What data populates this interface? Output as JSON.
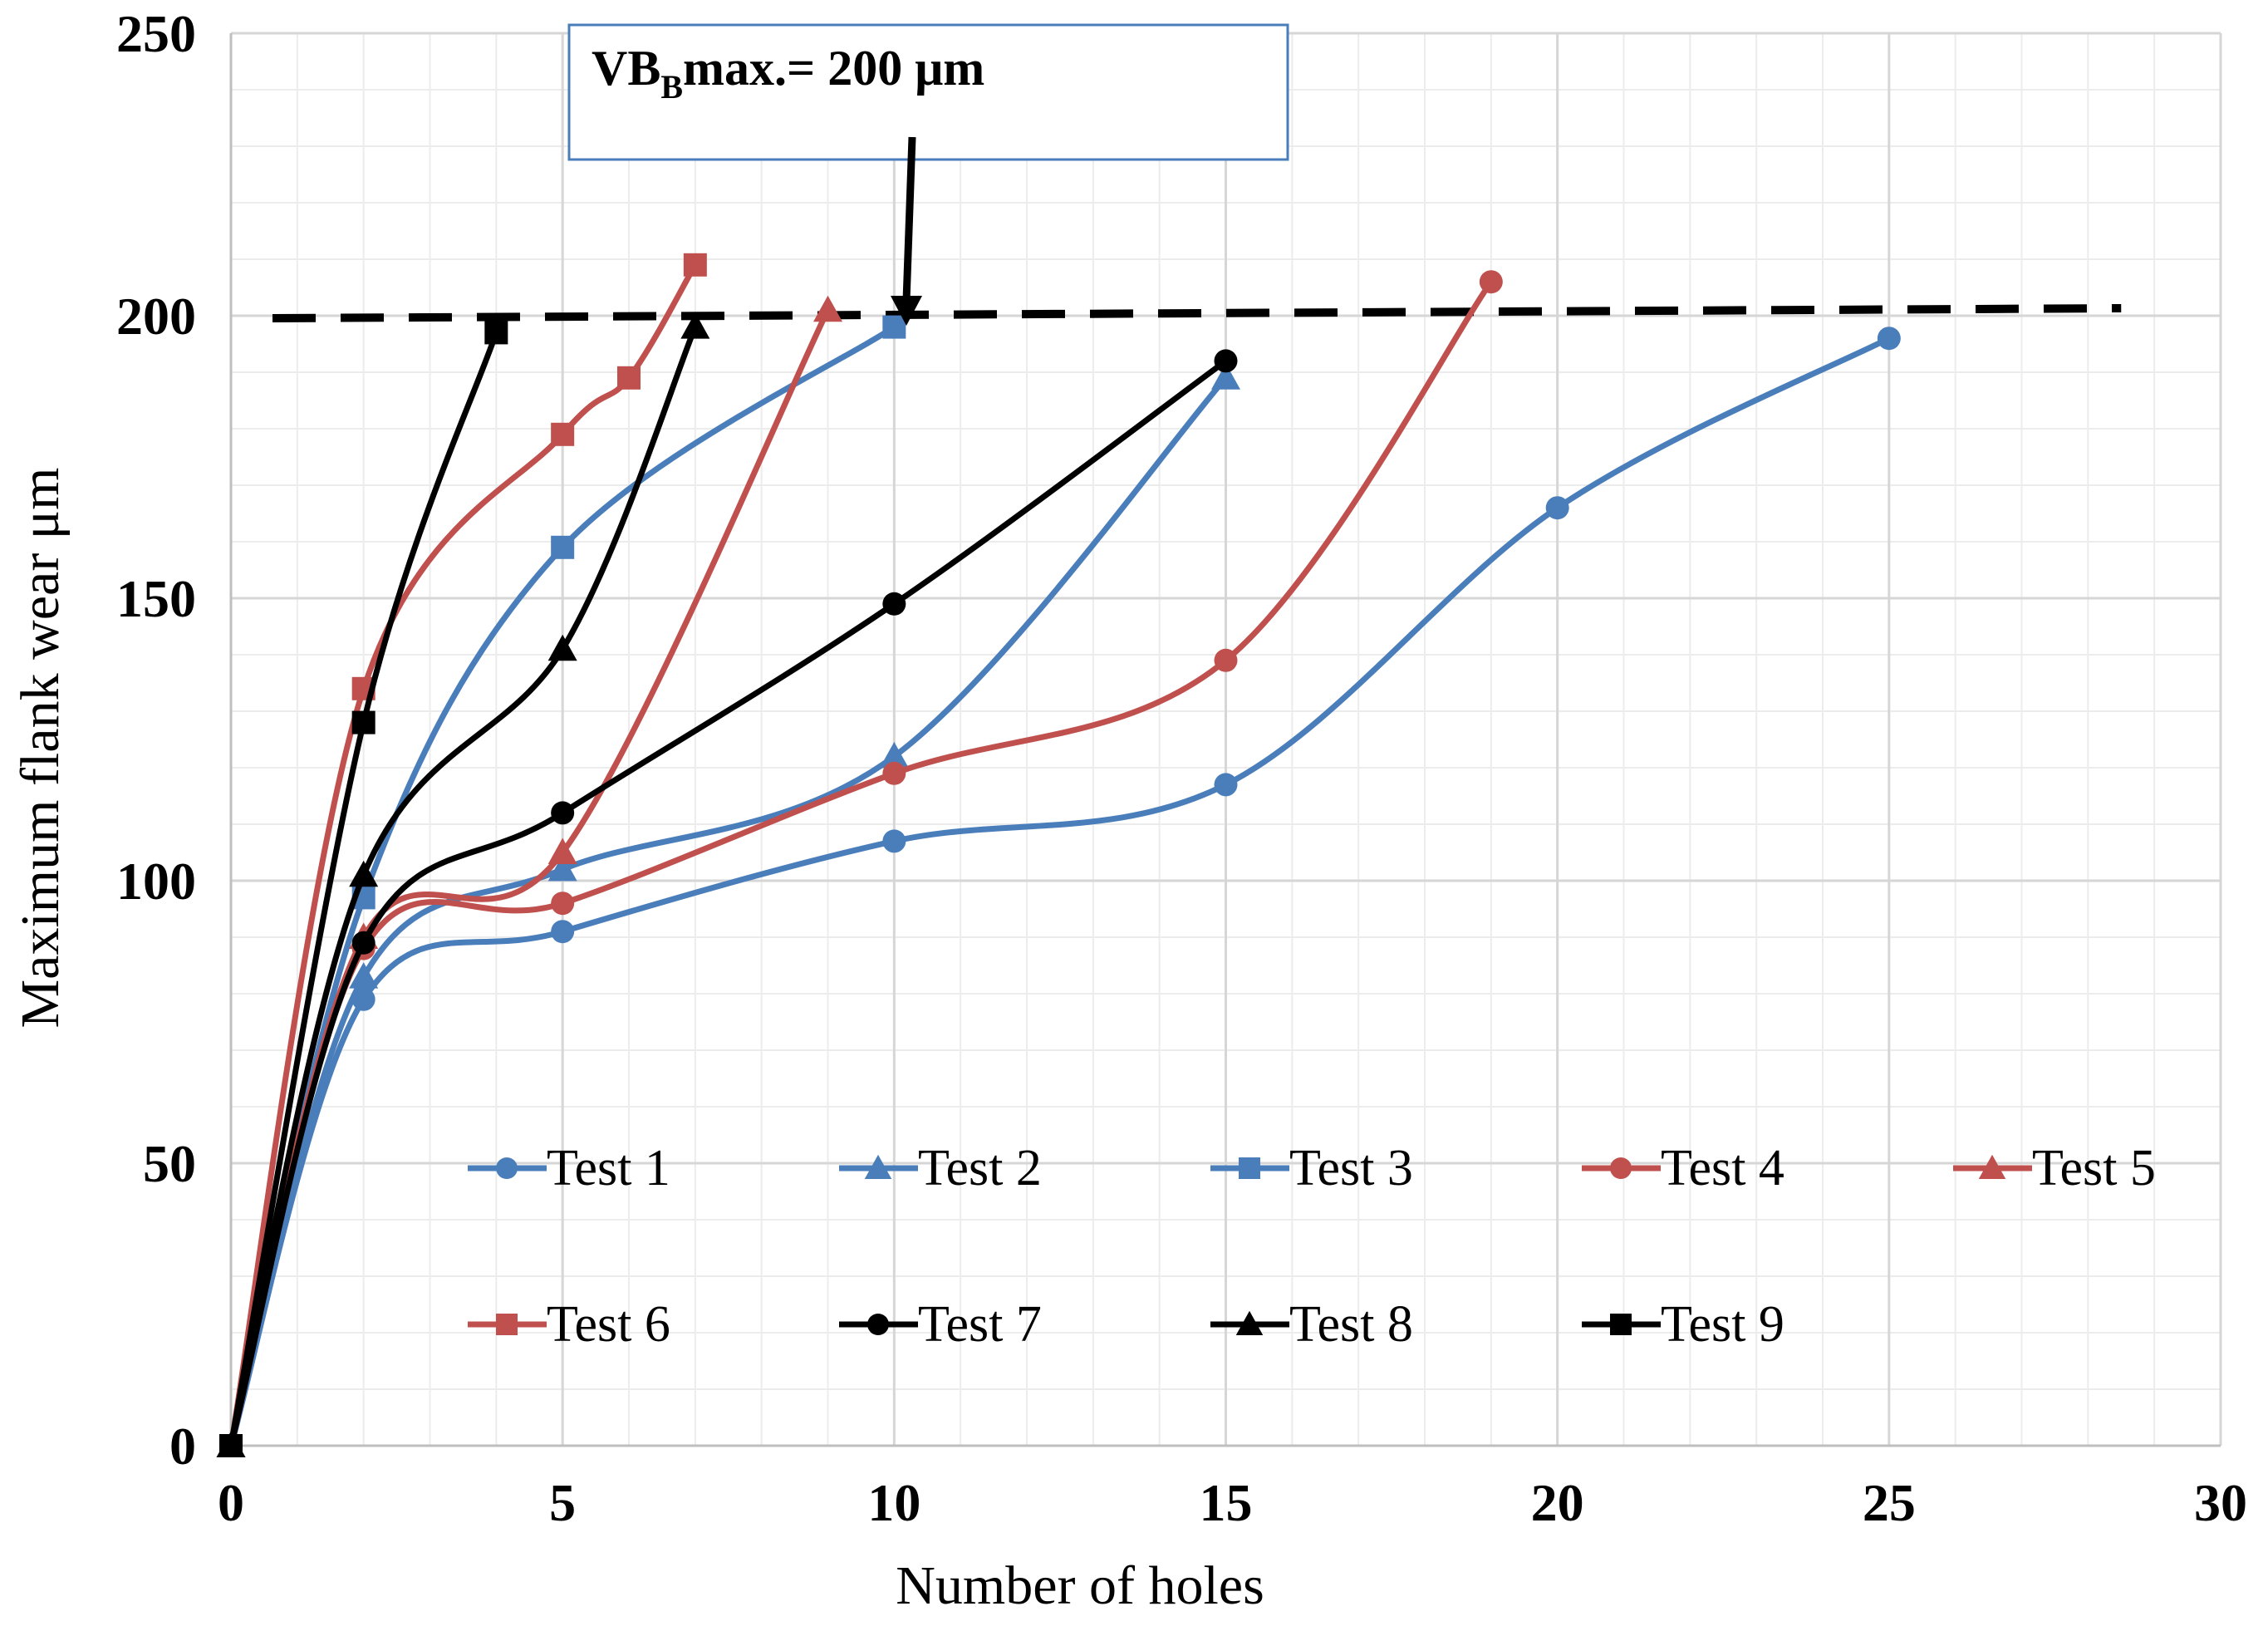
{
  "chart_data": {
    "type": "line",
    "title": "",
    "xlabel": "Number of holes",
    "ylabel": "Maximum flank wear μm",
    "xlim": [
      0,
      30
    ],
    "ylim": [
      0,
      250
    ],
    "x_ticks": [
      "0",
      "5",
      "10",
      "15",
      "20",
      "25",
      "30"
    ],
    "y_ticks": [
      "0",
      "50",
      "100",
      "150",
      "200",
      "250"
    ],
    "grid": true,
    "minor_grid": true,
    "legend_position": "lower-right inside plot, two rows",
    "threshold": {
      "y": 200,
      "style": "dashed",
      "color": "#000000"
    },
    "annotation": {
      "text_main": "VB",
      "text_sub": "B",
      "text_rest": "max.= 200 μm",
      "points_to": {
        "x": 10,
        "y": 200
      }
    },
    "series": [
      {
        "name": "Test 1",
        "color": "#4A7EBB",
        "marker": "circle",
        "x": [
          0,
          2,
          5,
          10,
          15,
          20,
          25
        ],
        "y": [
          0,
          79,
          91,
          107,
          117,
          166,
          196
        ]
      },
      {
        "name": "Test 2",
        "color": "#4A7EBB",
        "marker": "triangle",
        "x": [
          0,
          2,
          5,
          10,
          15
        ],
        "y": [
          0,
          83,
          102,
          122,
          189
        ]
      },
      {
        "name": "Test 3",
        "color": "#4A7EBB",
        "marker": "square",
        "x": [
          0,
          2,
          5,
          10
        ],
        "y": [
          0,
          97,
          159,
          198
        ]
      },
      {
        "name": "Test 4",
        "color": "#C0504D",
        "marker": "circle",
        "x": [
          0,
          2,
          5,
          10,
          15,
          19
        ],
        "y": [
          0,
          88,
          96,
          119,
          139,
          206
        ]
      },
      {
        "name": "Test 5",
        "color": "#C0504D",
        "marker": "triangle",
        "x": [
          0,
          2,
          5,
          9
        ],
        "y": [
          0,
          90,
          105,
          201
        ]
      },
      {
        "name": "Test 6",
        "color": "#C0504D",
        "marker": "square",
        "x": [
          0,
          2,
          5,
          6,
          7
        ],
        "y": [
          0,
          134,
          179,
          189,
          209
        ]
      },
      {
        "name": "Test 7",
        "color": "#000000",
        "marker": "circle",
        "x": [
          0,
          2,
          5,
          10,
          15
        ],
        "y": [
          0,
          89,
          112,
          149,
          192
        ]
      },
      {
        "name": "Test 8",
        "color": "#000000",
        "marker": "triangle",
        "x": [
          0,
          2,
          5,
          7
        ],
        "y": [
          0,
          101,
          141,
          198
        ]
      },
      {
        "name": "Test 9",
        "color": "#000000",
        "marker": "square",
        "x": [
          0,
          2,
          4
        ],
        "y": [
          0,
          128,
          197
        ]
      }
    ]
  }
}
